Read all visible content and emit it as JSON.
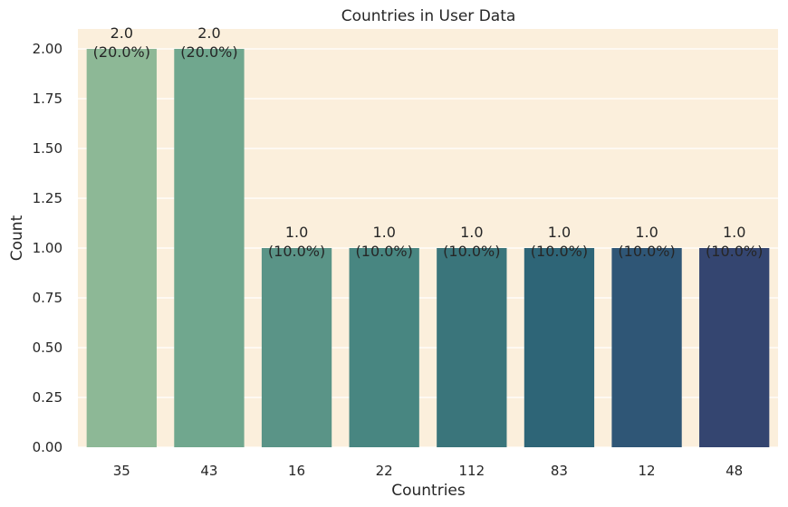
{
  "chart_data": {
    "type": "bar",
    "title": "Countries in User Data",
    "xlabel": "Countries",
    "ylabel": "Count",
    "categories": [
      "35",
      "43",
      "16",
      "22",
      "112",
      "83",
      "12",
      "48"
    ],
    "values": [
      2.0,
      2.0,
      1.0,
      1.0,
      1.0,
      1.0,
      1.0,
      1.0
    ],
    "value_labels": [
      "2.0",
      "2.0",
      "1.0",
      "1.0",
      "1.0",
      "1.0",
      "1.0",
      "1.0"
    ],
    "percent_labels": [
      "(20.0%)",
      "(20.0%)",
      "(10.0%)",
      "(10.0%)",
      "(10.0%)",
      "(10.0%)",
      "(10.0%)",
      "(10.0%)"
    ],
    "ylim": [
      0,
      2.1
    ],
    "yticks": [
      "0.00",
      "0.25",
      "0.50",
      "0.75",
      "1.00",
      "1.25",
      "1.50",
      "1.75",
      "2.00"
    ],
    "grid": true,
    "background_color": "#fbefdc",
    "bar_colors": [
      "#8db896",
      "#70a78e",
      "#5a9487",
      "#488681",
      "#3a757b",
      "#2e6577",
      "#2f5676",
      "#344570"
    ]
  }
}
